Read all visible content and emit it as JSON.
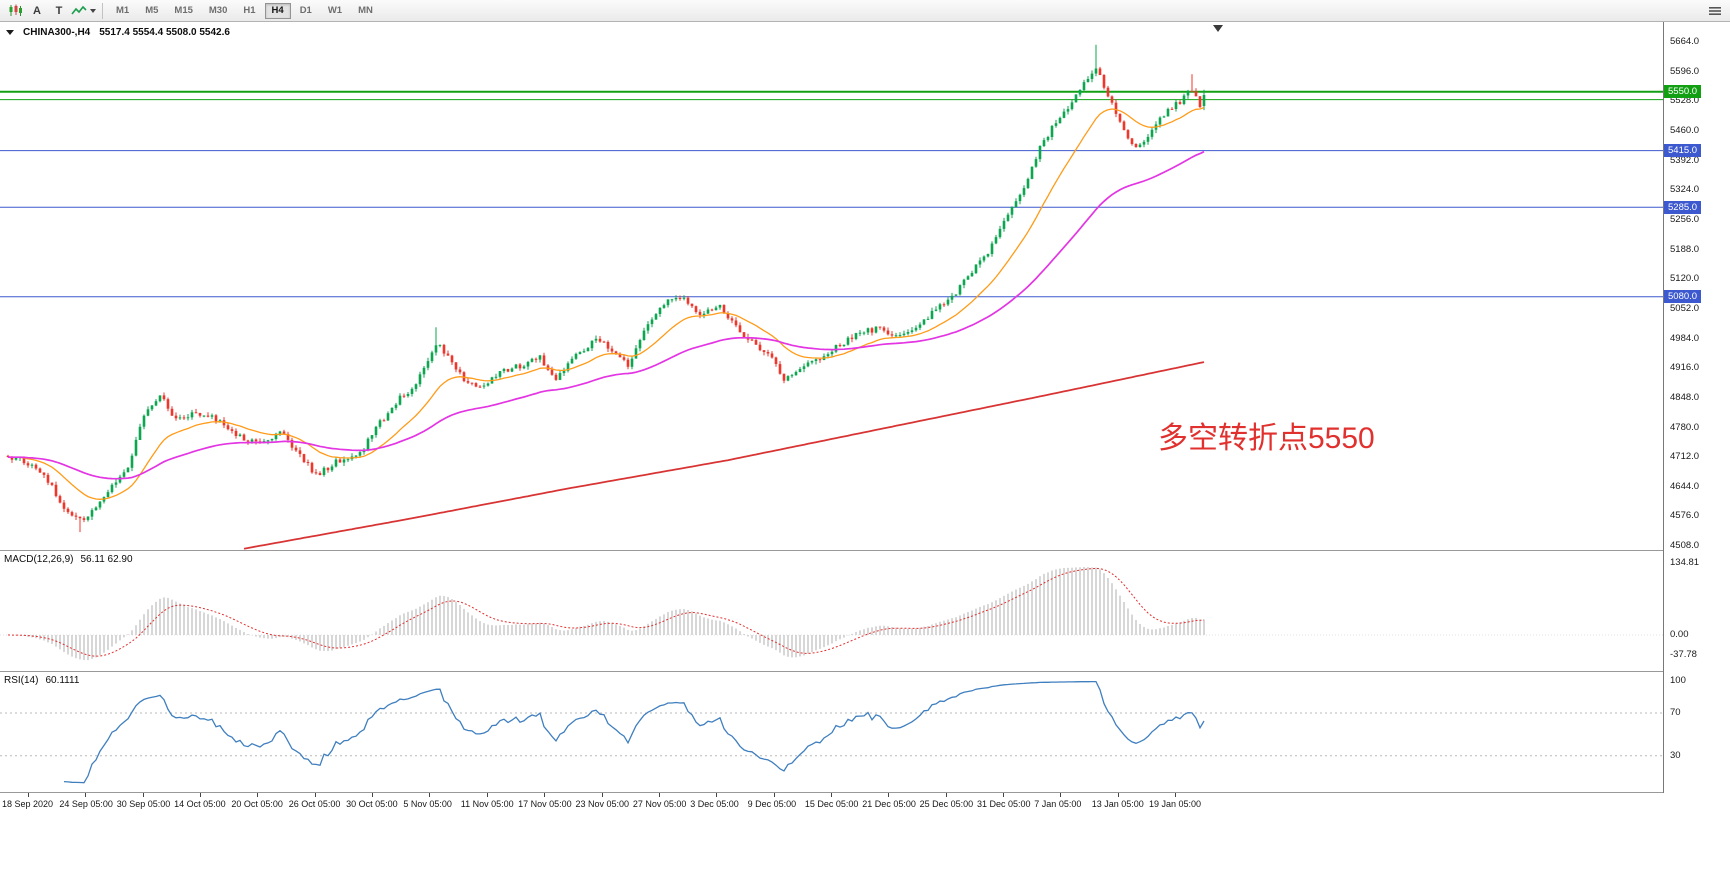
{
  "toolbar": {
    "cursor_tool_label": "A",
    "text_tool_label": "T",
    "timeframes": [
      "M1",
      "M5",
      "M15",
      "M30",
      "H1",
      "H4",
      "D1",
      "W1",
      "MN"
    ],
    "active_timeframe": "H4"
  },
  "header": {
    "symbol": "CHINA300-,H4",
    "quote": "5517.4 5554.4 5508.0 5542.6"
  },
  "annotation": {
    "text": "多空转折点5550",
    "color": "#e0312e"
  },
  "price_scale": {
    "ticks": [
      "5664.0",
      "5596.0",
      "5528.0",
      "5460.0",
      "5392.0",
      "5324.0",
      "5256.0",
      "5188.0",
      "5120.0",
      "5052.0",
      "4984.0",
      "4916.0",
      "4848.0",
      "4780.0",
      "4712.0",
      "4644.0",
      "4576.0",
      "4508.0"
    ]
  },
  "time_axis": {
    "labels": [
      "18 Sep 2020",
      "24 Sep 05:00",
      "30 Sep 05:00",
      "14 Oct 05:00",
      "20 Oct 05:00",
      "26 Oct 05:00",
      "30 Oct 05:00",
      "5 Nov 05:00",
      "11 Nov 05:00",
      "17 Nov 05:00",
      "23 Nov 05:00",
      "27 Nov 05:00",
      "3 Dec 05:00",
      "9 Dec 05:00",
      "15 Dec 05:00",
      "21 Dec 05:00",
      "25 Dec 05:00",
      "31 Dec 05:00",
      "7 Jan 05:00",
      "13 Jan 05:00",
      "19 Jan 05:00"
    ]
  },
  "macd_panel": {
    "title": "MACD(12,26,9)",
    "values": "56.11 62.90",
    "ticks": [
      "134.81",
      "0.00",
      "-37.78"
    ]
  },
  "rsi_panel": {
    "title": "RSI(14)",
    "value": "60.1111",
    "ticks": [
      "100",
      "70",
      "30"
    ]
  },
  "chart_data": {
    "type": "candlestick",
    "symbol": "CHINA300-",
    "timeframe": "H4",
    "last_quote": {
      "o": 5517.4,
      "h": 5554.4,
      "l": 5508.0,
      "c": 5542.6
    },
    "bars": 300,
    "bar_step": 4,
    "ylim": [
      4499,
      5710
    ],
    "candle_up_color": "#0ca64f",
    "candle_down_color": "#f0352b",
    "close_anchors": [
      [
        0,
        4715
      ],
      [
        5,
        4700
      ],
      [
        10,
        4660
      ],
      [
        14,
        4590
      ],
      [
        18,
        4565
      ],
      [
        21,
        4585
      ],
      [
        26,
        4650
      ],
      [
        30,
        4690
      ],
      [
        34,
        4810
      ],
      [
        38,
        4855
      ],
      [
        42,
        4800
      ],
      [
        47,
        4815
      ],
      [
        52,
        4800
      ],
      [
        58,
        4760
      ],
      [
        63,
        4745
      ],
      [
        68,
        4770
      ],
      [
        73,
        4715
      ],
      [
        77,
        4670
      ],
      [
        82,
        4700
      ],
      [
        88,
        4720
      ],
      [
        93,
        4790
      ],
      [
        98,
        4848
      ],
      [
        102,
        4878
      ],
      [
        107,
        4975
      ],
      [
        110,
        4945
      ],
      [
        114,
        4890
      ],
      [
        118,
        4870
      ],
      [
        123,
        4910
      ],
      [
        128,
        4920
      ],
      [
        133,
        4940
      ],
      [
        137,
        4895
      ],
      [
        142,
        4945
      ],
      [
        147,
        4985
      ],
      [
        151,
        4960
      ],
      [
        155,
        4925
      ],
      [
        159,
        5000
      ],
      [
        164,
        5065
      ],
      [
        169,
        5080
      ],
      [
        173,
        5040
      ],
      [
        178,
        5055
      ],
      [
        182,
        5010
      ],
      [
        187,
        4970
      ],
      [
        191,
        4940
      ],
      [
        194,
        4885
      ],
      [
        198,
        4915
      ],
      [
        203,
        4940
      ],
      [
        208,
        4970
      ],
      [
        213,
        4995
      ],
      [
        218,
        5010
      ],
      [
        222,
        4985
      ],
      [
        227,
        5015
      ],
      [
        232,
        5050
      ],
      [
        236,
        5080
      ],
      [
        241,
        5140
      ],
      [
        245,
        5180
      ],
      [
        250,
        5270
      ],
      [
        254,
        5330
      ],
      [
        258,
        5420
      ],
      [
        262,
        5480
      ],
      [
        266,
        5520
      ],
      [
        269,
        5570
      ],
      [
        272,
        5600
      ],
      [
        275,
        5545
      ],
      [
        278,
        5480
      ],
      [
        281,
        5425
      ],
      [
        284,
        5440
      ],
      [
        288,
        5490
      ],
      [
        292,
        5520
      ],
      [
        296,
        5555
      ],
      [
        298,
        5520
      ],
      [
        299,
        5542.6
      ]
    ],
    "extremes": [
      {
        "bar": 18,
        "low": 4540
      },
      {
        "bar": 107,
        "high": 5010
      },
      {
        "bar": 272,
        "high": 5658
      },
      {
        "bar": 296,
        "high": 5590
      }
    ],
    "noise": {
      "seed": 12,
      "close_amp": 7,
      "wick_amp": 8
    },
    "hlines": [
      {
        "price": 5550.0,
        "color": "#12a012",
        "width": 2,
        "label": "5550.0"
      },
      {
        "price": 5532.0,
        "color": "#12a012",
        "width": 1,
        "label": null
      },
      {
        "price": 5415.0,
        "color": "#3c59cf",
        "width": 1,
        "label": "5415.0"
      },
      {
        "price": 5285.0,
        "color": "#3c59cf",
        "width": 1,
        "label": "5285.0"
      },
      {
        "price": 5080.0,
        "color": "#3c59cf",
        "width": 1,
        "label": "5080.0"
      }
    ],
    "moving_averages": [
      {
        "name": "ma-fast",
        "type": "ema",
        "period": 18,
        "color": "#ff9b19",
        "width": 1.3
      },
      {
        "name": "ma-mid",
        "type": "ema",
        "period": 60,
        "color": "#e335e3",
        "width": 1.7
      },
      {
        "name": "ma-slow",
        "type": "anchors",
        "color": "#d93434",
        "width": 1.8,
        "anchors": [
          [
            59,
            4502
          ],
          [
            100,
            4570
          ],
          [
            140,
            4640
          ],
          [
            180,
            4705
          ],
          [
            220,
            4780
          ],
          [
            260,
            4855
          ],
          [
            299,
            4930
          ]
        ]
      }
    ],
    "macd": {
      "fast": 12,
      "slow": 26,
      "signal": 9,
      "current": 56.11,
      "current_signal": 62.9,
      "hist_color": "#cdcdcd",
      "signal_color": "#e03030"
    },
    "rsi": {
      "period": 14,
      "current": 60.1111,
      "color": "#3f7fbf",
      "levels": [
        70,
        30
      ]
    }
  }
}
